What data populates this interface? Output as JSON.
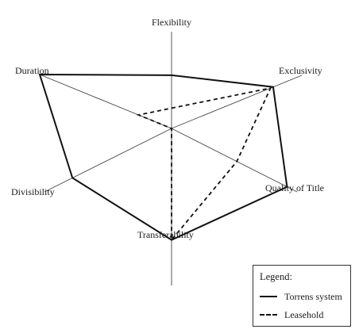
{
  "diagram": {
    "axes": [
      {
        "label": "Flexibility"
      },
      {
        "label": "Exclusivity"
      },
      {
        "label": "Quality of Title"
      },
      {
        "label": "Transferability"
      },
      {
        "label": "Divisibility"
      },
      {
        "label": "Duration"
      }
    ],
    "series": [
      {
        "name": "Torrens system",
        "style": "solid",
        "color": "#111111",
        "values": {
          "Flexibility": 0.55,
          "Exclusivity": 0.78,
          "Quality of Title": 0.92,
          "Transferability": 0.71,
          "Divisibility": 0.78,
          "Duration": 1.0
        }
      },
      {
        "name": "Leasehold",
        "style": "dashed",
        "color": "#111111",
        "values": {
          "Flexibility": 0.21,
          "Exclusivity": 0.76,
          "Quality of Title": 0.52,
          "Transferability": 0.71,
          "Divisibility": 0.0,
          "Duration": 0.25
        }
      }
    ]
  },
  "legend": {
    "title": "Legend:",
    "items": [
      {
        "label": "Torrens system",
        "style": "solid"
      },
      {
        "label": "Leasehold",
        "style": "dashed"
      }
    ]
  }
}
